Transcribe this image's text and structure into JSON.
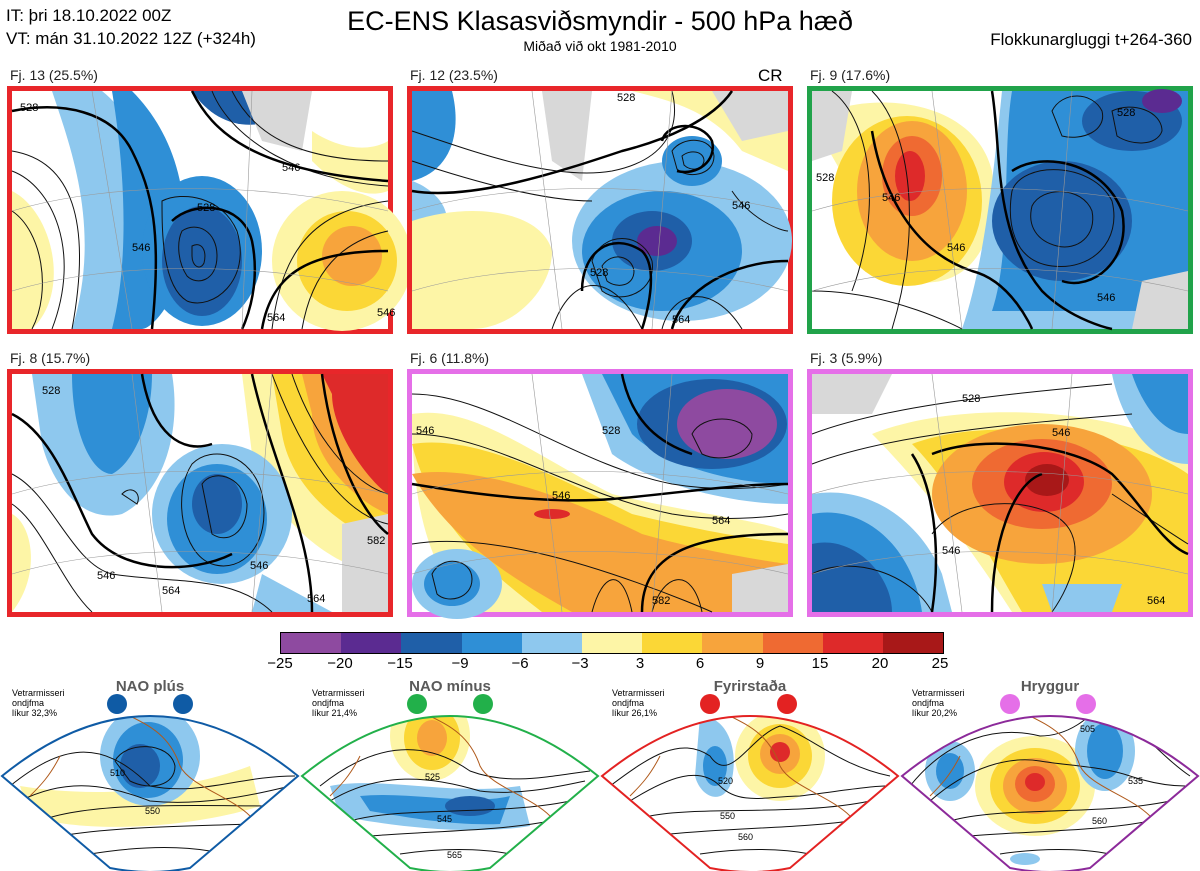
{
  "header": {
    "it": "IT: þri 18.10.2022 00Z",
    "vt": "VT: mán 31.10.2022 12Z  (+324h)",
    "title": "EC-ENS Klasasviðsmyndir - 500 hPa hæð",
    "subtitle": "Miðað við okt 1981-2010",
    "window": "Flokkunargluggi t+264-360"
  },
  "panels": [
    {
      "label": "Fj. 13 (25.5%)",
      "border": "#e8262a",
      "extra": ""
    },
    {
      "label": "Fj. 12 (23.5%)",
      "border": "#e8262a",
      "extra": "CR"
    },
    {
      "label": "Fj. 9 (17.6%)",
      "border": "#21a34a",
      "extra": ""
    },
    {
      "label": "Fj. 8 (15.7%)",
      "border": "#e8262a",
      "extra": ""
    },
    {
      "label": "Fj. 6 (11.8%)",
      "border": "#e56fe8",
      "extra": ""
    },
    {
      "label": "Fj. 3 (5.9%)",
      "border": "#e56fe8",
      "extra": ""
    }
  ],
  "contour_labels": [
    [
      "528",
      "546",
      "528",
      "546",
      "564",
      "546"
    ],
    [
      "528",
      "546",
      "528",
      "564"
    ],
    [
      "528",
      "546",
      "546",
      "546",
      "528"
    ],
    [
      "528",
      "546",
      "564",
      "546",
      "564",
      "582"
    ],
    [
      "546",
      "546",
      "528",
      "564",
      "582"
    ],
    [
      "528",
      "546",
      "546",
      "564"
    ]
  ],
  "colorbar": {
    "colors": [
      "#8e4aa0",
      "#5b2b91",
      "#1f5fa8",
      "#2f8fd6",
      "#8ec8ee",
      "#ffffff",
      "#fdf5a6",
      "#fbd736",
      "#f7a43c",
      "#ef6a32",
      "#de2a2a",
      "#a81818"
    ],
    "ticks": [
      "−25",
      "−20",
      "−15",
      "−9",
      "−6",
      "−3",
      "3",
      "6",
      "9",
      "15",
      "20",
      "25"
    ]
  },
  "regimes": [
    {
      "name": "NAO plús",
      "note": [
        "Vetrarmisseri",
        "ondjfma",
        "líkur 32,3%"
      ],
      "color": "#0f5ba5",
      "labels": [
        "510",
        "550"
      ]
    },
    {
      "name": "NAO mínus",
      "note": [
        "Vetrarmisseri",
        "ondjfma",
        "líkur 21,4%"
      ],
      "color": "#22b04a",
      "labels": [
        "525",
        "545",
        "565"
      ]
    },
    {
      "name": "Fyrirstaða",
      "note": [
        "Vetrarmisseri",
        "ondjfma",
        "líkur 26,1%"
      ],
      "color": "#e32222",
      "labels": [
        "520",
        "550",
        "560"
      ]
    },
    {
      "name": "Hryggur",
      "note": [
        "Vetrarmisseri",
        "ondjfma",
        "líkur 20,2%"
      ],
      "color": "#e56fe8",
      "labels": [
        "505",
        "535",
        "560"
      ]
    }
  ]
}
